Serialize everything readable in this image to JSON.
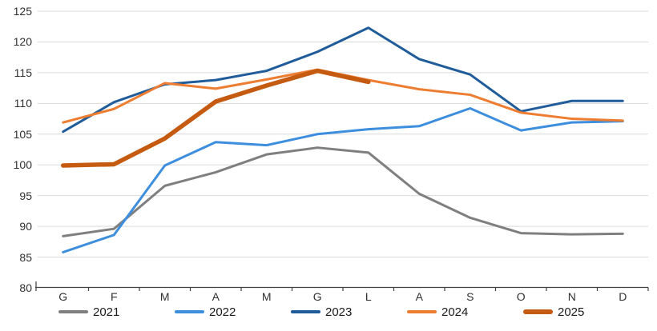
{
  "chart_data": {
    "type": "line",
    "title": "",
    "xlabel": "",
    "ylabel": "",
    "categories": [
      "G",
      "F",
      "M",
      "A",
      "M",
      "G",
      "L",
      "A",
      "S",
      "O",
      "N",
      "D"
    ],
    "y_ticks": [
      80,
      85,
      90,
      95,
      100,
      105,
      110,
      115,
      120,
      125
    ],
    "ylim": [
      80,
      125
    ],
    "grid": true,
    "legend_position": "bottom",
    "background_color": "#FFFFFF",
    "gridline_color": "#D9D9D9",
    "axis_color": "#404040",
    "tick_label_color": "#303030",
    "legend_label_color": "#1A1A1A",
    "series": [
      {
        "name": "2021",
        "color": "#7F7F7F",
        "line_width": 3,
        "values": [
          88.4,
          89.6,
          96.6,
          98.8,
          101.7,
          102.8,
          102.0,
          95.3,
          91.4,
          88.9,
          88.7,
          88.8
        ]
      },
      {
        "name": "2022",
        "color": "#3E8EDE",
        "line_width": 3,
        "values": [
          85.8,
          88.6,
          99.9,
          103.7,
          103.2,
          105.0,
          105.8,
          106.3,
          109.2,
          105.6,
          106.9,
          107.1
        ]
      },
      {
        "name": "2023",
        "color": "#1F5C99",
        "line_width": 3,
        "values": [
          105.4,
          110.2,
          113.1,
          113.8,
          115.3,
          118.4,
          122.3,
          117.2,
          114.7,
          108.7,
          110.4,
          110.4
        ]
      },
      {
        "name": "2024",
        "color": "#ED7D31",
        "line_width": 3,
        "values": [
          106.9,
          109.1,
          113.3,
          112.4,
          113.9,
          115.5,
          113.8,
          112.3,
          111.4,
          108.5,
          107.5,
          107.2
        ]
      },
      {
        "name": "2025",
        "color": "#C55A11",
        "line_width": 5.5,
        "values": [
          99.9,
          100.1,
          104.3,
          110.3,
          112.9,
          115.3,
          113.5,
          null,
          null,
          null,
          null,
          null
        ]
      }
    ]
  }
}
